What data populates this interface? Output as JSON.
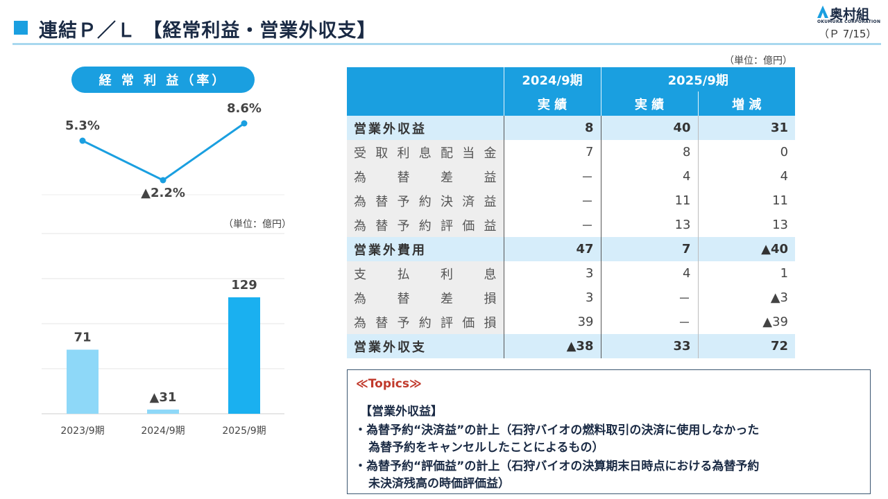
{
  "header": {
    "title": "連結Ｐ／Ｌ 【経常利益・営業外収支】",
    "logo_name": "奥村組",
    "logo_sub": "OKUMURA CORPORATION",
    "page": "（Ｐ 7/15）"
  },
  "left_panel": {
    "pill_label": "経 常 利 益（率）",
    "unit": "（単位：億円）"
  },
  "chart_data": [
    {
      "type": "line",
      "categories": [
        "2023/9期",
        "2024/9期",
        "2025/9期"
      ],
      "values": [
        5.3,
        -2.2,
        8.6
      ],
      "data_labels": [
        "5.3%",
        "▲2.2%",
        "8.6%"
      ],
      "color": "#1a9fe0"
    },
    {
      "type": "bar",
      "categories": [
        "2023/9期",
        "2024/9期",
        "2025/9期"
      ],
      "values": [
        71,
        -31,
        129
      ],
      "data_labels": [
        "71",
        "▲31",
        "129"
      ],
      "bar_colors": [
        "#8ed8f8",
        "#8ed8f8",
        "#1ab0f0"
      ],
      "ylim": [
        0,
        150
      ],
      "grid": true
    }
  ],
  "table": {
    "unit": "（単位：億円）",
    "headers": {
      "period_2024": "2024/9期",
      "period_2025": "2025/9期",
      "actual_2024": "実 績",
      "actual_2025": "実 績",
      "change": "増 減"
    },
    "rows": [
      {
        "label": "営業外収益",
        "v2024": "8",
        "v2025": "40",
        "diff": "31",
        "type": "sec"
      },
      {
        "label": "受取利息配当金",
        "v2024": "7",
        "v2025": "8",
        "diff": "0",
        "type": "sub"
      },
      {
        "label": "為替差益",
        "v2024": "－",
        "v2025": "4",
        "diff": "4",
        "type": "sub"
      },
      {
        "label": "為替予約決済益",
        "v2024": "－",
        "v2025": "11",
        "diff": "11",
        "type": "sub"
      },
      {
        "label": "為替予約評価益",
        "v2024": "－",
        "v2025": "13",
        "diff": "13",
        "type": "sub"
      },
      {
        "label": "営業外費用",
        "v2024": "47",
        "v2025": "7",
        "diff": "▲40",
        "type": "sec"
      },
      {
        "label": "支払利息",
        "v2024": "3",
        "v2025": "4",
        "diff": "1",
        "type": "sub"
      },
      {
        "label": "為替差損",
        "v2024": "3",
        "v2025": "－",
        "diff": "▲3",
        "type": "sub"
      },
      {
        "label": "為替予約評価損",
        "v2024": "39",
        "v2025": "－",
        "diff": "▲39",
        "type": "sub"
      },
      {
        "label": "営業外収支",
        "v2024": "▲38",
        "v2025": "33",
        "diff": "72",
        "type": "sec"
      }
    ]
  },
  "topics": {
    "heading": "≪Topics≫",
    "subheading": "【営業外収益】",
    "bullet1_line1": "・為替予約“決済益”の計上（石狩バイオの燃料取引の決済に使用しなかった",
    "bullet1_line2": "為替予約をキャンセルしたことによるもの）",
    "bullet2_line1": "・為替予約“評価益”の計上（石狩バイオの決算期末日時点における為替予約",
    "bullet2_line2": "未決済残高の時価評価益）"
  }
}
